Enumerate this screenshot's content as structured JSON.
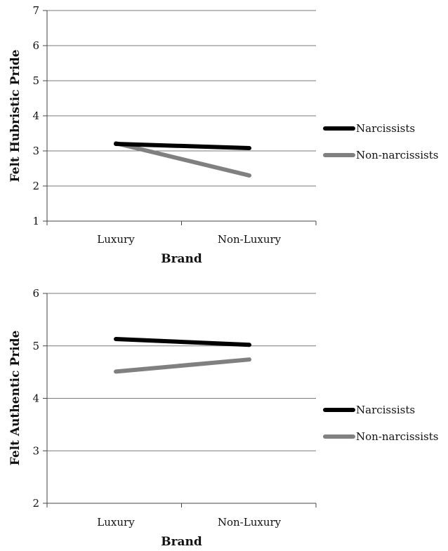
{
  "chart_data": [
    {
      "type": "line",
      "categories": [
        "Luxury",
        "Non-Luxury"
      ],
      "xlabel": "Brand",
      "ylabel": "Felt Hubristic Pride",
      "ylim": [
        1,
        7
      ],
      "yticks": [
        "1",
        "2",
        "3",
        "4",
        "5",
        "6",
        "7"
      ],
      "grid": true,
      "legend_position": "right",
      "series": [
        {
          "name": "Narcissists",
          "values": [
            3.2,
            3.08
          ],
          "color": "#000000"
        },
        {
          "name": "Non-narcissists",
          "values": [
            3.22,
            2.3
          ],
          "color": "#808080"
        }
      ]
    },
    {
      "type": "line",
      "categories": [
        "Luxury",
        "Non-Luxury"
      ],
      "xlabel": "Brand",
      "ylabel": "Felt Authentic Pride",
      "ylim": [
        2,
        6
      ],
      "yticks": [
        "2",
        "3",
        "4",
        "5",
        "6"
      ],
      "grid": true,
      "legend_position": "right",
      "series": [
        {
          "name": "Narcissists",
          "values": [
            5.13,
            5.02
          ],
          "color": "#000000"
        },
        {
          "name": "Non-narcissists",
          "values": [
            4.51,
            4.74
          ],
          "color": "#808080"
        }
      ]
    }
  ]
}
